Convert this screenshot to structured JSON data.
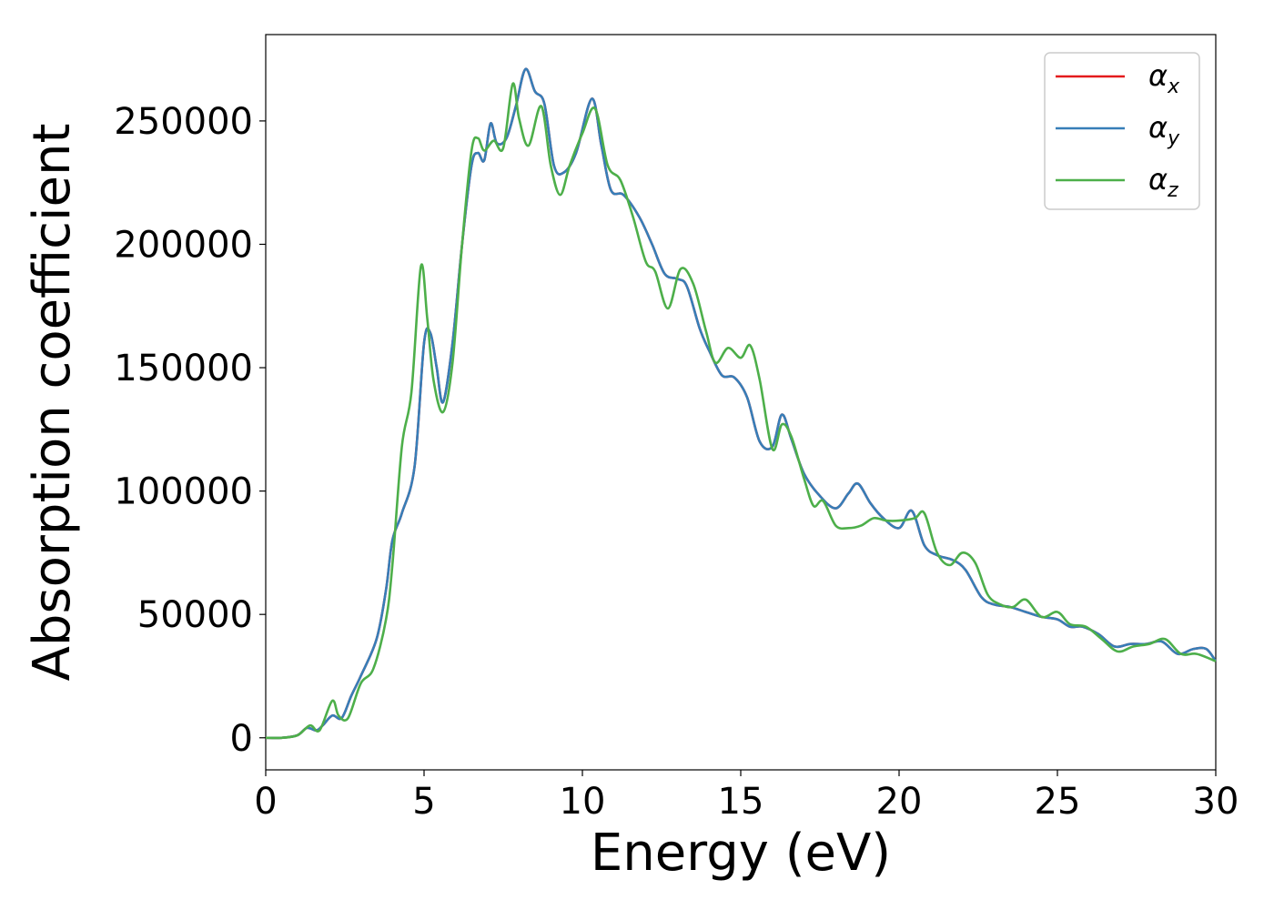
{
  "chart_data": {
    "type": "line",
    "title": "",
    "xlabel": "Energy (eV)",
    "ylabel": "Absorption coefficient",
    "xlim": [
      0,
      30
    ],
    "ylim": [
      -13000,
      285000
    ],
    "xticks": [
      0,
      5,
      10,
      15,
      20,
      25,
      30
    ],
    "yticks": [
      0,
      50000,
      100000,
      150000,
      200000,
      250000
    ],
    "grid": false,
    "legend_position": "top-right",
    "series": [
      {
        "name": "αx",
        "symbol": "α",
        "subscript": "x",
        "color": "#e41a1c",
        "x": [
          0,
          0.5,
          1.0,
          1.3,
          1.6,
          1.8,
          2.1,
          2.4,
          2.7,
          3.0,
          3.5,
          3.8,
          4.0,
          4.3,
          4.7,
          5.0,
          5.2,
          5.4,
          5.6,
          5.9,
          6.2,
          6.5,
          6.7,
          6.9,
          7.1,
          7.3,
          7.6,
          7.9,
          8.2,
          8.5,
          8.8,
          9.1,
          9.4,
          9.8,
          10.3,
          10.6,
          10.9,
          11.3,
          11.8,
          12.2,
          12.6,
          13.0,
          13.3,
          13.7,
          14.0,
          14.4,
          14.8,
          15.2,
          15.6,
          16.0,
          16.3,
          16.6,
          17.0,
          17.5,
          18.0,
          18.4,
          18.7,
          19.1,
          19.5,
          20.0,
          20.4,
          20.8,
          21.2,
          21.7,
          22.1,
          22.6,
          23.0,
          23.5,
          24.0,
          24.5,
          25.0,
          25.4,
          25.8,
          26.3,
          26.8,
          27.3,
          27.8,
          28.3,
          28.8,
          29.3,
          29.7,
          30.0
        ],
        "y": [
          0,
          0,
          1000,
          4000,
          3000,
          5000,
          9000,
          8000,
          17000,
          25000,
          40000,
          60000,
          80000,
          91000,
          110000,
          160000,
          164000,
          150000,
          136000,
          160000,
          200000,
          232000,
          237000,
          234000,
          249000,
          241000,
          243000,
          256000,
          271000,
          262000,
          257000,
          232000,
          229000,
          237000,
          259000,
          240000,
          222000,
          220000,
          211000,
          200000,
          188000,
          186000,
          183000,
          166000,
          157000,
          147000,
          146000,
          138000,
          120000,
          118000,
          131000,
          121000,
          107000,
          98000,
          93000,
          99000,
          103000,
          95000,
          89000,
          85000,
          92000,
          78000,
          74000,
          72000,
          68000,
          57000,
          54000,
          53000,
          51000,
          49000,
          48000,
          45000,
          45000,
          42000,
          37000,
          38000,
          38000,
          39000,
          34000,
          36000,
          36000,
          31000
        ]
      },
      {
        "name": "αy",
        "symbol": "α",
        "subscript": "y",
        "color": "#377eb8",
        "x": [
          0,
          0.5,
          1.0,
          1.3,
          1.6,
          1.8,
          2.1,
          2.4,
          2.7,
          3.0,
          3.5,
          3.8,
          4.0,
          4.3,
          4.7,
          5.0,
          5.2,
          5.4,
          5.6,
          5.9,
          6.2,
          6.5,
          6.7,
          6.9,
          7.1,
          7.3,
          7.6,
          7.9,
          8.2,
          8.5,
          8.8,
          9.1,
          9.4,
          9.8,
          10.3,
          10.6,
          10.9,
          11.3,
          11.8,
          12.2,
          12.6,
          13.0,
          13.3,
          13.7,
          14.0,
          14.4,
          14.8,
          15.2,
          15.6,
          16.0,
          16.3,
          16.6,
          17.0,
          17.5,
          18.0,
          18.4,
          18.7,
          19.1,
          19.5,
          20.0,
          20.4,
          20.8,
          21.2,
          21.7,
          22.1,
          22.6,
          23.0,
          23.5,
          24.0,
          24.5,
          25.0,
          25.4,
          25.8,
          26.3,
          26.8,
          27.3,
          27.8,
          28.3,
          28.8,
          29.3,
          29.7,
          30.0
        ],
        "y": [
          0,
          0,
          1000,
          4000,
          3000,
          5000,
          9000,
          8000,
          17000,
          25000,
          40000,
          60000,
          80000,
          91000,
          110000,
          160000,
          164000,
          150000,
          136000,
          160000,
          200000,
          232000,
          237000,
          234000,
          249000,
          241000,
          243000,
          256000,
          271000,
          262000,
          257000,
          232000,
          229000,
          237000,
          259000,
          240000,
          222000,
          220000,
          211000,
          200000,
          188000,
          186000,
          183000,
          166000,
          157000,
          147000,
          146000,
          138000,
          120000,
          118000,
          131000,
          121000,
          107000,
          98000,
          93000,
          99000,
          103000,
          95000,
          89000,
          85000,
          92000,
          78000,
          74000,
          72000,
          68000,
          57000,
          54000,
          53000,
          51000,
          49000,
          48000,
          45000,
          45000,
          42000,
          37000,
          38000,
          38000,
          39000,
          34000,
          36000,
          36000,
          31000
        ]
      },
      {
        "name": "αz",
        "symbol": "α",
        "subscript": "z",
        "color": "#4daf4a",
        "x": [
          0,
          0.5,
          1.0,
          1.4,
          1.7,
          2.1,
          2.3,
          2.6,
          3.0,
          3.4,
          3.8,
          4.0,
          4.3,
          4.6,
          4.9,
          5.1,
          5.3,
          5.6,
          5.9,
          6.2,
          6.5,
          6.7,
          6.9,
          7.2,
          7.5,
          7.8,
          8.0,
          8.3,
          8.7,
          9.0,
          9.3,
          9.6,
          10.0,
          10.4,
          10.8,
          11.2,
          11.6,
          12.0,
          12.3,
          12.7,
          13.1,
          13.5,
          13.9,
          14.2,
          14.6,
          15.0,
          15.3,
          15.6,
          16.0,
          16.3,
          16.6,
          17.0,
          17.3,
          17.6,
          18.0,
          18.4,
          18.8,
          19.2,
          19.6,
          20.0,
          20.5,
          20.8,
          21.2,
          21.6,
          22.0,
          22.4,
          22.8,
          23.2,
          23.6,
          24.0,
          24.5,
          25.0,
          25.4,
          25.9,
          26.4,
          26.9,
          27.4,
          27.9,
          28.4,
          28.9,
          29.4,
          30.0
        ],
        "y": [
          0,
          0,
          1000,
          5000,
          3000,
          15000,
          9000,
          8000,
          22000,
          28000,
          48000,
          70000,
          118000,
          140000,
          191000,
          170000,
          145000,
          132000,
          152000,
          200000,
          238000,
          243000,
          238000,
          242000,
          239000,
          265000,
          251000,
          240000,
          256000,
          232000,
          220000,
          232000,
          245000,
          255000,
          232000,
          226000,
          211000,
          193000,
          189000,
          174000,
          190000,
          184000,
          165000,
          152000,
          158000,
          154000,
          159000,
          145000,
          117000,
          127000,
          122000,
          105000,
          94000,
          96000,
          86000,
          85000,
          86000,
          89000,
          88000,
          88000,
          89000,
          91000,
          75000,
          70000,
          75000,
          71000,
          58000,
          54000,
          53000,
          56000,
          49000,
          51000,
          46000,
          45000,
          40000,
          35000,
          37000,
          38000,
          40000,
          34000,
          34000,
          31000
        ]
      }
    ]
  }
}
